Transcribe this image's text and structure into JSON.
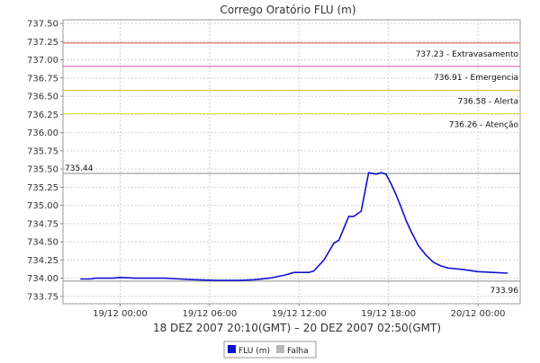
{
  "chart_data": {
    "type": "line",
    "title": "Corrego Oratório FLU (m)",
    "xlabel": "18 DEZ 2007 20:10(GMT) – 20 DEZ 2007 02:50(GMT)",
    "ylabel": "",
    "x_range": [
      "2007-12-18T20:10",
      "2007-12-20T02:50"
    ],
    "ylim": [
      733.65,
      737.55
    ],
    "y_ticks": [
      733.75,
      734.0,
      734.25,
      734.5,
      734.75,
      735.0,
      735.25,
      735.5,
      735.75,
      736.0,
      736.25,
      736.5,
      736.75,
      737.0,
      737.25,
      737.5
    ],
    "y_tick_labels": [
      "733.75",
      "734.00",
      "734.25",
      "734.50",
      "734.75",
      "735.00",
      "735.25",
      "735.50",
      "735.75",
      "736.00",
      "736.25",
      "736.50",
      "736.75",
      "737.00",
      "737.25",
      "737.50"
    ],
    "x_ticks": [
      "2007-12-19T00:00",
      "2007-12-19T06:00",
      "2007-12-19T12:00",
      "2007-12-19T18:00",
      "2007-12-20T00:00"
    ],
    "x_tick_labels": [
      "19/12 00:00",
      "19/12 06:00",
      "19/12 12:00",
      "19/12 18:00",
      "20/12 00:00"
    ],
    "grid": true,
    "legend_position": "bottom-center",
    "thresholds": [
      {
        "value": 737.23,
        "label": "737.23 - Extravasamento",
        "color": "#d84a4a"
      },
      {
        "value": 736.91,
        "label": "736.91 - Emergencia",
        "color": "#e04fc4"
      },
      {
        "value": 736.58,
        "label": "736.58 - Alerta",
        "color": "#d9b81a"
      },
      {
        "value": 736.26,
        "label": "736.26 - Atenção",
        "color": "#e6e040"
      }
    ],
    "reference_lines": [
      {
        "value": 735.44,
        "label": "735.44",
        "color": "#8a8a8a",
        "label_side": "left"
      },
      {
        "value": 733.96,
        "label": "733.96",
        "color": "#8a8a8a",
        "label_side": "right"
      }
    ],
    "series": [
      {
        "name": "FLU (m)",
        "color": "#1010d0",
        "x": [
          "2007-12-18T21:20",
          "2007-12-18T22:00",
          "2007-12-18T22:20",
          "2007-12-18T23:30",
          "2007-12-19T00:00",
          "2007-12-19T01:00",
          "2007-12-19T03:00",
          "2007-12-19T04:00",
          "2007-12-19T05:00",
          "2007-12-19T06:30",
          "2007-12-19T08:00",
          "2007-12-19T09:00",
          "2007-12-19T10:00",
          "2007-12-19T11:00",
          "2007-12-19T11:40",
          "2007-12-19T12:40",
          "2007-12-19T13:00",
          "2007-12-19T13:40",
          "2007-12-19T14:20",
          "2007-12-19T14:40",
          "2007-12-19T15:20",
          "2007-12-19T15:40",
          "2007-12-19T16:10",
          "2007-12-19T16:40",
          "2007-12-19T17:10",
          "2007-12-19T17:30",
          "2007-12-19T17:50",
          "2007-12-19T18:10",
          "2007-12-19T18:30",
          "2007-12-19T18:50",
          "2007-12-19T19:10",
          "2007-12-19T19:30",
          "2007-12-19T20:00",
          "2007-12-19T20:30",
          "2007-12-19T21:00",
          "2007-12-19T21:30",
          "2007-12-19T22:00",
          "2007-12-19T23:00",
          "2007-12-20T00:00",
          "2007-12-20T01:00",
          "2007-12-20T02:00"
        ],
        "values": [
          733.99,
          733.99,
          734.0,
          734.0,
          734.01,
          734.0,
          734.0,
          733.99,
          733.98,
          733.97,
          733.97,
          733.98,
          734.0,
          734.04,
          734.08,
          734.08,
          734.1,
          734.25,
          734.48,
          734.52,
          734.85,
          734.85,
          734.92,
          735.45,
          735.43,
          735.45,
          735.43,
          735.3,
          735.15,
          734.98,
          734.8,
          734.65,
          734.45,
          734.32,
          734.22,
          734.17,
          734.14,
          734.12,
          734.09,
          734.08,
          734.07
        ]
      },
      {
        "name": "Falha",
        "color": "#b8b8b8",
        "x": [],
        "values": []
      }
    ]
  }
}
